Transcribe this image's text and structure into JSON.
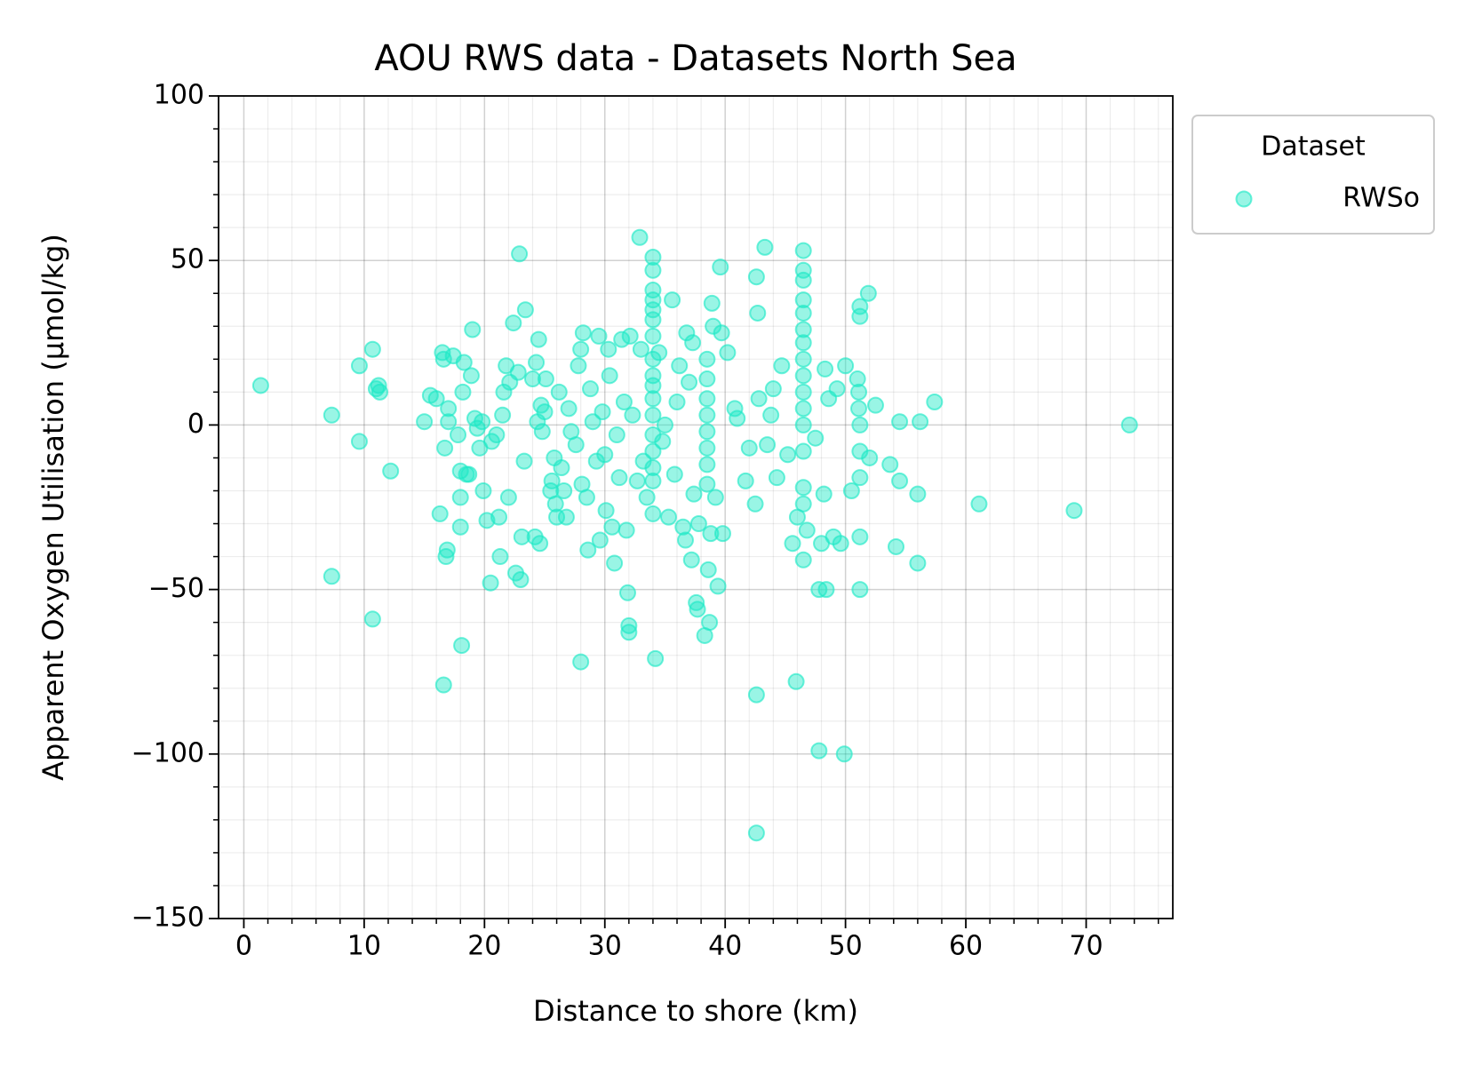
{
  "chart_data": {
    "type": "scatter",
    "title": "AOU RWS data - Datasets North Sea",
    "xlabel": "Distance to shore (km)",
    "ylabel": "Apparent Oxygen Utilisation (µmol/kg)",
    "xlim": [
      -2.1,
      77.2
    ],
    "ylim": [
      -150,
      100
    ],
    "xticks": [
      0,
      10,
      20,
      30,
      40,
      50,
      60,
      70
    ],
    "xminorticks": [
      2,
      4,
      6,
      8,
      12,
      14,
      16,
      18,
      22,
      24,
      26,
      28,
      32,
      34,
      36,
      38,
      42,
      44,
      46,
      48,
      52,
      54,
      56,
      58,
      62,
      64,
      66,
      68,
      72,
      74,
      76
    ],
    "yticks": [
      {
        "value": -150,
        "label": "−150"
      },
      {
        "value": -100,
        "label": "−100"
      },
      {
        "value": -50,
        "label": "−50"
      },
      0,
      50,
      100
    ],
    "yminorticks": [
      -140,
      -130,
      -120,
      -110,
      -90,
      -80,
      -70,
      -60,
      -40,
      -30,
      -20,
      -10,
      10,
      20,
      30,
      40,
      60,
      70,
      80,
      90
    ],
    "grid": true,
    "legend": "outside-upper-right",
    "legend_title": "Dataset",
    "series": [
      {
        "name": "RWSo",
        "color": "#1de9c6",
        "alpha": 0.45,
        "x": [
          1.4,
          7.3,
          7.3,
          9.6,
          9.6,
          10.7,
          10.7,
          11,
          11.2,
          11.3,
          12.2,
          15,
          15.5,
          16,
          16.3,
          16.5,
          16.6,
          16.7,
          16.8,
          16.9,
          16.6,
          17,
          17,
          17.4,
          17.8,
          18,
          18,
          18,
          18.1,
          18.2,
          18.3,
          18.5,
          18.7,
          18.9,
          19,
          19.2,
          19.4,
          19.6,
          19.8,
          19.9,
          20.2,
          20.5,
          20.6,
          21,
          21.2,
          21.3,
          21.5,
          21.6,
          21.8,
          22,
          22.1,
          22.4,
          22.6,
          22.8,
          22.9,
          23,
          23.1,
          23.3,
          23.4,
          24,
          24.2,
          24.3,
          24.4,
          24.5,
          24.6,
          24.7,
          24.8,
          25,
          25.1,
          25.5,
          25.6,
          25.8,
          25.9,
          26,
          26.2,
          26.4,
          26.6,
          26.8,
          27,
          27.2,
          27.6,
          27.8,
          28,
          28,
          28.1,
          28.2,
          28.5,
          28.6,
          28.8,
          29,
          29.3,
          29.5,
          29.6,
          29.8,
          30,
          30.1,
          30.3,
          30.4,
          30.6,
          30.8,
          31,
          31.2,
          31.4,
          31.6,
          31.8,
          31.9,
          32,
          32,
          32.1,
          32.3,
          32.7,
          32.9,
          33,
          33.2,
          33.5,
          34,
          34,
          34,
          34,
          34,
          34,
          34,
          34,
          34,
          34,
          34,
          34,
          34,
          34,
          34,
          34,
          34,
          34.2,
          34.5,
          34.8,
          35,
          35.3,
          35.6,
          35.8,
          36,
          36.2,
          36.5,
          36.7,
          36.8,
          37,
          37.2,
          37.3,
          37.4,
          37.6,
          37.7,
          37.8,
          38.5,
          38.5,
          38.5,
          38.5,
          38.5,
          38.5,
          38.5,
          38.5,
          38.3,
          38.6,
          38.7,
          38.8,
          38.9,
          39,
          39.2,
          39.4,
          39.6,
          39.7,
          39.8,
          40.2,
          40.8,
          41,
          41.7,
          42,
          42.5,
          42.6,
          42.6,
          42.6,
          42.7,
          42.8,
          43.3,
          43.5,
          43.8,
          44,
          44.3,
          44.7,
          45.2,
          45.6,
          45.9,
          46,
          46.5,
          46.5,
          46.5,
          46.5,
          46.5,
          46.5,
          46.5,
          46.5,
          46.5,
          46.5,
          46.5,
          46.5,
          46.5,
          46.5,
          46.5,
          46.5,
          46.8,
          47.5,
          47.8,
          47.8,
          48,
          48.2,
          48.3,
          48.4,
          48.6,
          49,
          49.3,
          49.6,
          49.9,
          50,
          50.5,
          51,
          51.1,
          51.1,
          51.2,
          51.2,
          51.2,
          51.2,
          51.2,
          51.2,
          51.2,
          51.9,
          52,
          52.5,
          53.7,
          54.2,
          54.5,
          54.5,
          56,
          56,
          56.2,
          57.4,
          61.1,
          69,
          73.6
        ],
        "values": [
          12,
          3,
          -46,
          18,
          -5,
          23,
          -59,
          11,
          12,
          10,
          -14,
          1,
          9,
          8,
          -27,
          22,
          20,
          -7,
          -40,
          -38,
          -79,
          5,
          1,
          21,
          -3,
          -14,
          -22,
          -31,
          -67,
          10,
          19,
          -15,
          -15,
          15,
          29,
          2,
          -1,
          -7,
          1,
          -20,
          -29,
          -48,
          -5,
          -3,
          -28,
          -40,
          3,
          10,
          18,
          -22,
          13,
          31,
          -45,
          16,
          52,
          -47,
          -34,
          -11,
          35,
          14,
          -34,
          19,
          1,
          26,
          -36,
          6,
          -2,
          4,
          14,
          -20,
          -17,
          -10,
          -24,
          -28,
          10,
          -13,
          -20,
          -28,
          5,
          -2,
          -6,
          18,
          23,
          -72,
          -18,
          28,
          -22,
          -38,
          11,
          1,
          -11,
          27,
          -35,
          4,
          -9,
          -26,
          23,
          15,
          -31,
          -42,
          -3,
          -16,
          26,
          7,
          -32,
          -51,
          -61,
          -63,
          27,
          3,
          -17,
          57,
          23,
          -11,
          -22,
          51,
          47,
          41,
          38,
          35,
          32,
          27,
          20,
          15,
          12,
          8,
          3,
          -3,
          -8,
          -13,
          -17,
          -27,
          -71,
          22,
          -5,
          0,
          -28,
          38,
          -15,
          7,
          18,
          -31,
          -35,
          28,
          13,
          -41,
          25,
          -21,
          -54,
          -56,
          -30,
          20,
          14,
          8,
          3,
          -2,
          -7,
          -12,
          -18,
          -64,
          -44,
          -60,
          -33,
          37,
          30,
          -22,
          -49,
          48,
          28,
          -33,
          22,
          5,
          2,
          -17,
          -7,
          -24,
          -82,
          -124,
          45,
          34,
          8,
          54,
          -6,
          3,
          11,
          -16,
          18,
          -9,
          -36,
          -78,
          -28,
          53,
          47,
          44,
          38,
          34,
          29,
          25,
          20,
          15,
          10,
          5,
          0,
          -8,
          -19,
          -24,
          -41,
          -32,
          -4,
          -99,
          -50,
          -36,
          -21,
          17,
          -50,
          8,
          -34,
          11,
          -36,
          -100,
          18,
          -20,
          14,
          10,
          5,
          0,
          -8,
          -16,
          -34,
          -50,
          33,
          36,
          40,
          -10,
          6,
          -12,
          -37,
          1,
          -17,
          -21,
          -42,
          1,
          7,
          -24,
          -26,
          0
        ]
      }
    ]
  }
}
